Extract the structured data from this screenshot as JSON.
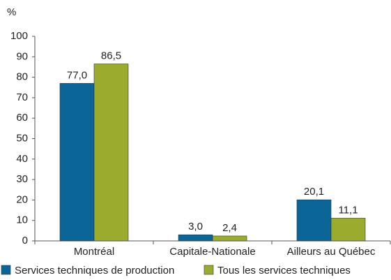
{
  "chart_data": {
    "type": "bar",
    "y_label": "%",
    "categories": [
      "Montréal",
      "Capitale-Nationale",
      "Ailleurs au Québec"
    ],
    "series": [
      {
        "name": "Services techniques de production",
        "color": "#0b6596",
        "values": [
          77.0,
          3.0,
          20.1
        ],
        "value_labels": [
          "77,0",
          "3,0",
          "20,1"
        ]
      },
      {
        "name": "Tous les services techniques",
        "color": "#9bab2e",
        "values": [
          86.5,
          2.4,
          11.1
        ],
        "value_labels": [
          "86,5",
          "2,4",
          "11,1"
        ]
      }
    ],
    "ylim": [
      0,
      100
    ],
    "yticks": [
      0,
      10,
      20,
      30,
      40,
      50,
      60,
      70,
      80,
      90,
      100
    ],
    "grid": false
  }
}
